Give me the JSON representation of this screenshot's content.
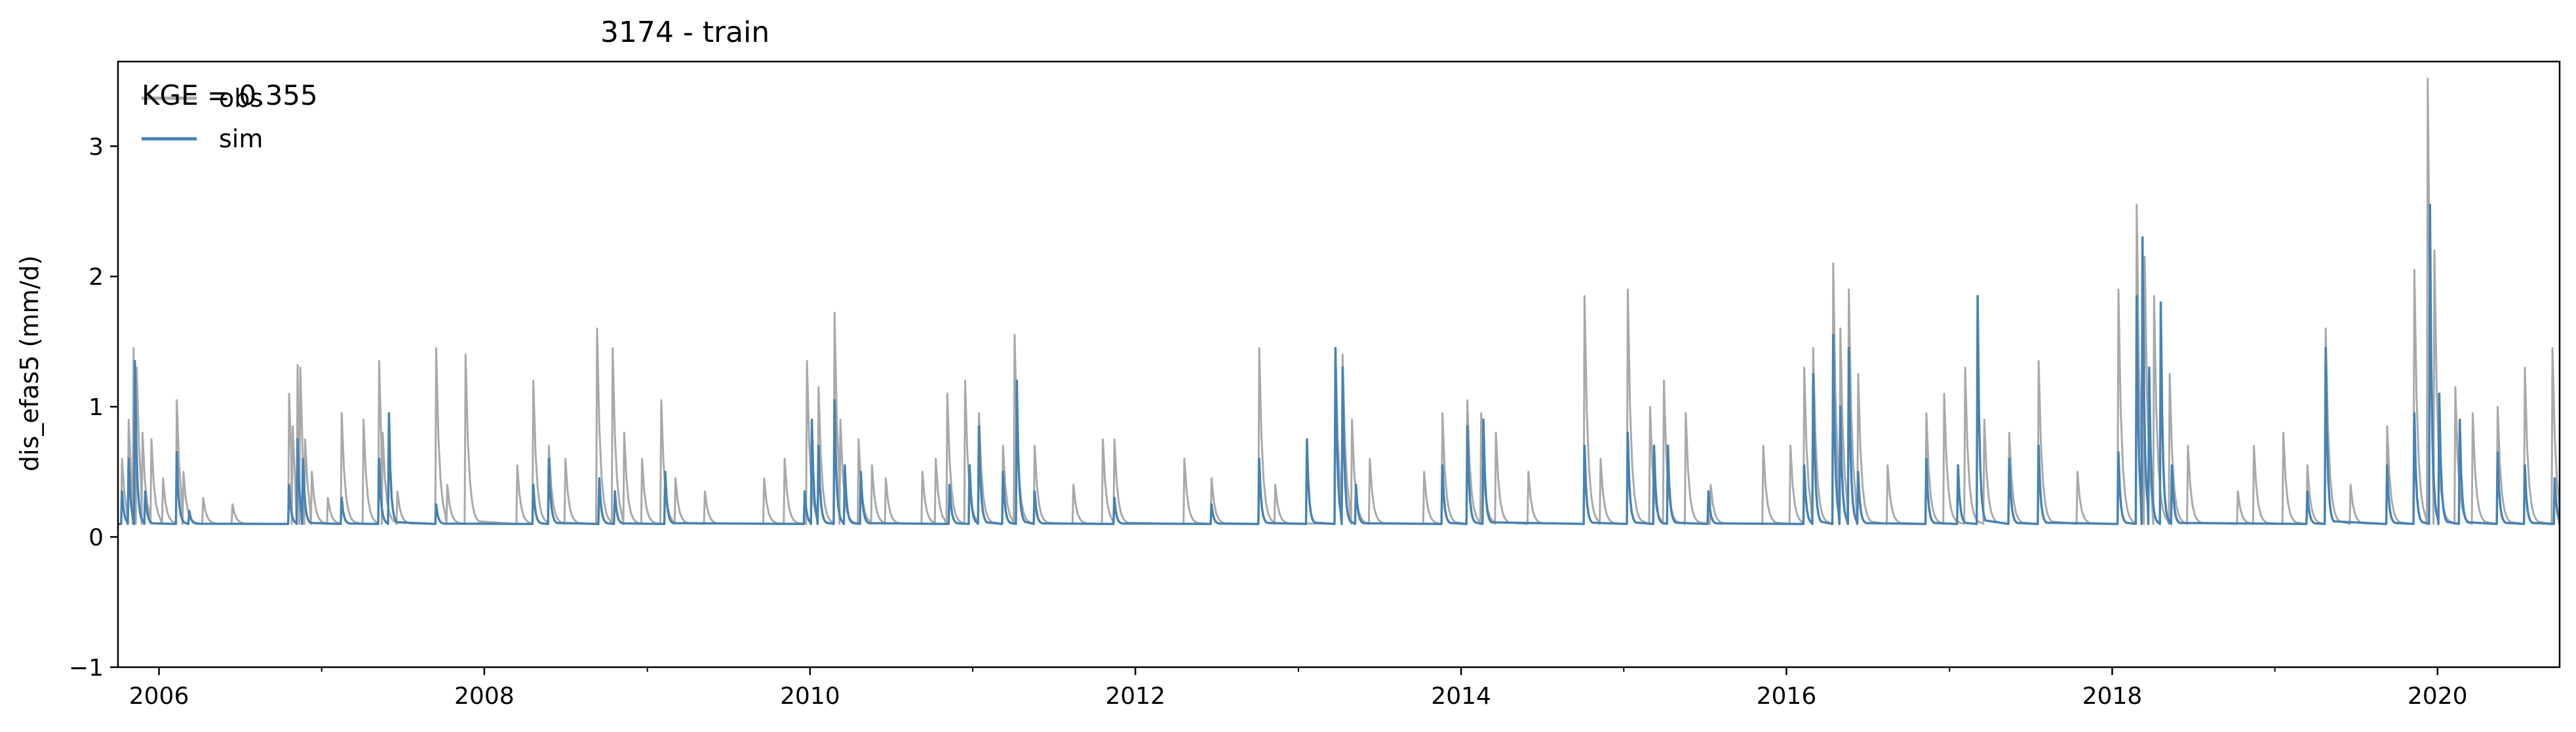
{
  "chart_data": {
    "type": "line",
    "title": "3174 - train",
    "xlabel": "",
    "ylabel": "dis_efas5 (mm/d)",
    "xlim": [
      "2005-10-01",
      "2020-10-01"
    ],
    "ylim": [
      -1,
      3.65
    ],
    "x_ticks": [
      "2006",
      "2008",
      "2010",
      "2012",
      "2014",
      "2016",
      "2018",
      "2020"
    ],
    "y_ticks": [
      "−1",
      "0",
      "1",
      "2",
      "3"
    ],
    "grid": false,
    "legend": "upper-left",
    "annotation": "KGE = 0.355",
    "baseline": 0.1,
    "series": [
      {
        "name": "obs",
        "color": "#a9a9a9",
        "points": [
          [
            "2005-10-10",
            0.6
          ],
          [
            "2005-10-25",
            0.9
          ],
          [
            "2005-11-05",
            1.45
          ],
          [
            "2005-11-12",
            1.3
          ],
          [
            "2005-11-25",
            0.8
          ],
          [
            "2005-12-15",
            0.75
          ],
          [
            "2006-01-10",
            0.45
          ],
          [
            "2006-02-10",
            1.05
          ],
          [
            "2006-02-25",
            0.5
          ],
          [
            "2006-04-10",
            0.3
          ],
          [
            "2006-06-15",
            0.25
          ],
          [
            "2006-10-20",
            1.1
          ],
          [
            "2006-10-28",
            0.85
          ],
          [
            "2006-11-08",
            1.32
          ],
          [
            "2006-11-14",
            1.3
          ],
          [
            "2006-11-25",
            0.75
          ],
          [
            "2006-12-10",
            0.5
          ],
          [
            "2007-01-15",
            0.3
          ],
          [
            "2007-02-15",
            0.95
          ],
          [
            "2007-04-05",
            0.9
          ],
          [
            "2007-05-10",
            1.35
          ],
          [
            "2007-05-18",
            0.8
          ],
          [
            "2007-06-20",
            0.35
          ],
          [
            "2007-09-15",
            1.45
          ],
          [
            "2007-10-10",
            0.4
          ],
          [
            "2007-11-20",
            1.4
          ],
          [
            "2008-03-15",
            0.55
          ],
          [
            "2008-04-20",
            1.2
          ],
          [
            "2008-05-25",
            0.7
          ],
          [
            "2008-07-01",
            0.6
          ],
          [
            "2008-09-10",
            1.6
          ],
          [
            "2008-10-15",
            1.45
          ],
          [
            "2008-11-10",
            0.8
          ],
          [
            "2008-12-20",
            0.6
          ],
          [
            "2009-02-01",
            1.05
          ],
          [
            "2009-03-05",
            0.45
          ],
          [
            "2009-05-10",
            0.35
          ],
          [
            "2009-09-20",
            0.45
          ],
          [
            "2009-11-05",
            0.6
          ],
          [
            "2009-12-25",
            1.35
          ],
          [
            "2010-01-20",
            1.15
          ],
          [
            "2010-02-25",
            1.72
          ],
          [
            "2010-03-10",
            0.9
          ],
          [
            "2010-04-20",
            0.75
          ],
          [
            "2010-05-20",
            0.55
          ],
          [
            "2010-06-20",
            0.45
          ],
          [
            "2010-09-10",
            0.5
          ],
          [
            "2010-10-10",
            0.6
          ],
          [
            "2010-11-05",
            1.1
          ],
          [
            "2010-12-15",
            1.2
          ],
          [
            "2011-01-15",
            0.95
          ],
          [
            "2011-03-10",
            0.7
          ],
          [
            "2011-04-05",
            1.55
          ],
          [
            "2011-05-20",
            0.7
          ],
          [
            "2011-08-15",
            0.4
          ],
          [
            "2011-10-20",
            0.75
          ],
          [
            "2011-11-15",
            0.75
          ],
          [
            "2012-04-20",
            0.6
          ],
          [
            "2012-06-20",
            0.45
          ],
          [
            "2012-10-05",
            1.45
          ],
          [
            "2012-11-10",
            0.4
          ],
          [
            "2013-03-25",
            1.45
          ],
          [
            "2013-04-10",
            1.4
          ],
          [
            "2013-05-01",
            0.9
          ],
          [
            "2013-06-10",
            0.6
          ],
          [
            "2013-10-10",
            0.5
          ],
          [
            "2013-11-20",
            0.95
          ],
          [
            "2014-01-15",
            1.05
          ],
          [
            "2014-02-15",
            0.95
          ],
          [
            "2014-03-20",
            0.8
          ],
          [
            "2014-06-01",
            0.5
          ],
          [
            "2014-10-05",
            1.85
          ],
          [
            "2014-11-10",
            0.6
          ],
          [
            "2015-01-10",
            1.9
          ],
          [
            "2015-03-01",
            1.0
          ],
          [
            "2015-04-01",
            1.2
          ],
          [
            "2015-05-20",
            0.95
          ],
          [
            "2015-07-15",
            0.4
          ],
          [
            "2015-11-10",
            0.7
          ],
          [
            "2016-01-10",
            0.7
          ],
          [
            "2016-02-10",
            1.3
          ],
          [
            "2016-03-01",
            1.45
          ],
          [
            "2016-04-15",
            2.1
          ],
          [
            "2016-05-01",
            1.6
          ],
          [
            "2016-05-20",
            1.9
          ],
          [
            "2016-06-10",
            1.25
          ],
          [
            "2016-08-15",
            0.55
          ],
          [
            "2016-11-10",
            0.95
          ],
          [
            "2016-12-20",
            1.1
          ],
          [
            "2017-02-05",
            1.3
          ],
          [
            "2017-03-20",
            0.9
          ],
          [
            "2017-05-15",
            0.8
          ],
          [
            "2017-07-20",
            1.35
          ],
          [
            "2017-10-15",
            0.5
          ],
          [
            "2018-01-15",
            1.9
          ],
          [
            "2018-02-25",
            2.55
          ],
          [
            "2018-03-15",
            2.15
          ],
          [
            "2018-04-05",
            1.85
          ],
          [
            "2018-05-10",
            1.25
          ],
          [
            "2018-06-20",
            0.7
          ],
          [
            "2018-10-10",
            0.35
          ],
          [
            "2018-11-15",
            0.7
          ],
          [
            "2019-01-20",
            0.8
          ],
          [
            "2019-03-15",
            0.55
          ],
          [
            "2019-04-25",
            1.6
          ],
          [
            "2019-06-20",
            0.4
          ],
          [
            "2019-09-10",
            0.85
          ],
          [
            "2019-11-10",
            2.05
          ],
          [
            "2019-12-10",
            3.52
          ],
          [
            "2019-12-25",
            2.2
          ],
          [
            "2020-02-10",
            1.15
          ],
          [
            "2020-03-20",
            0.95
          ],
          [
            "2020-05-15",
            1.0
          ],
          [
            "2020-07-15",
            1.3
          ],
          [
            "2020-09-15",
            1.45
          ]
        ]
      },
      {
        "name": "sim",
        "color": "#4682b4",
        "points": [
          [
            "2005-10-10",
            0.35
          ],
          [
            "2005-10-25",
            0.6
          ],
          [
            "2005-11-08",
            1.35
          ],
          [
            "2005-12-01",
            0.35
          ],
          [
            "2006-02-10",
            0.65
          ],
          [
            "2006-03-10",
            0.2
          ],
          [
            "2006-10-20",
            0.4
          ],
          [
            "2006-11-08",
            0.75
          ],
          [
            "2006-11-20",
            0.6
          ],
          [
            "2007-02-15",
            0.3
          ],
          [
            "2007-05-10",
            0.6
          ],
          [
            "2007-06-01",
            0.95
          ],
          [
            "2007-09-15",
            0.25
          ],
          [
            "2008-04-20",
            0.4
          ],
          [
            "2008-05-25",
            0.6
          ],
          [
            "2008-09-15",
            0.45
          ],
          [
            "2008-10-20",
            0.35
          ],
          [
            "2009-02-10",
            0.5
          ],
          [
            "2009-12-20",
            0.35
          ],
          [
            "2010-01-05",
            0.9
          ],
          [
            "2010-01-20",
            0.7
          ],
          [
            "2010-02-25",
            1.05
          ],
          [
            "2010-03-20",
            0.55
          ],
          [
            "2010-04-25",
            0.5
          ],
          [
            "2010-11-10",
            0.4
          ],
          [
            "2010-12-25",
            0.55
          ],
          [
            "2011-01-15",
            0.85
          ],
          [
            "2011-03-10",
            0.5
          ],
          [
            "2011-04-10",
            1.2
          ],
          [
            "2011-05-20",
            0.35
          ],
          [
            "2011-11-15",
            0.3
          ],
          [
            "2012-06-20",
            0.25
          ],
          [
            "2012-10-05",
            0.6
          ],
          [
            "2013-01-20",
            0.75
          ],
          [
            "2013-03-25",
            1.45
          ],
          [
            "2013-04-10",
            1.3
          ],
          [
            "2013-05-10",
            0.4
          ],
          [
            "2013-11-20",
            0.55
          ],
          [
            "2014-01-15",
            0.85
          ],
          [
            "2014-02-20",
            0.9
          ],
          [
            "2014-10-05",
            0.7
          ],
          [
            "2015-01-10",
            0.8
          ],
          [
            "2015-03-10",
            0.7
          ],
          [
            "2015-04-10",
            0.7
          ],
          [
            "2015-07-10",
            0.35
          ],
          [
            "2016-02-10",
            0.55
          ],
          [
            "2016-03-01",
            1.25
          ],
          [
            "2016-04-15",
            1.55
          ],
          [
            "2016-05-01",
            1.0
          ],
          [
            "2016-05-20",
            1.45
          ],
          [
            "2016-06-10",
            0.5
          ],
          [
            "2016-11-10",
            0.6
          ],
          [
            "2017-01-20",
            0.55
          ],
          [
            "2017-03-05",
            1.85
          ],
          [
            "2017-05-15",
            0.6
          ],
          [
            "2017-07-20",
            0.7
          ],
          [
            "2018-01-15",
            0.65
          ],
          [
            "2018-02-25",
            1.85
          ],
          [
            "2018-03-10",
            2.3
          ],
          [
            "2018-03-25",
            1.3
          ],
          [
            "2018-04-20",
            1.8
          ],
          [
            "2018-05-15",
            0.55
          ],
          [
            "2019-03-15",
            0.35
          ],
          [
            "2019-04-25",
            1.45
          ],
          [
            "2019-09-10",
            0.55
          ],
          [
            "2019-11-10",
            0.95
          ],
          [
            "2019-12-15",
            2.55
          ],
          [
            "2020-01-05",
            1.1
          ],
          [
            "2020-02-20",
            0.9
          ],
          [
            "2020-05-15",
            0.65
          ],
          [
            "2020-07-15",
            0.55
          ],
          [
            "2020-09-20",
            0.45
          ]
        ]
      }
    ]
  }
}
